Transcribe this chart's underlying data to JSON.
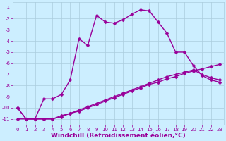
{
  "xlabel": "Windchill (Refroidissement éolien,°C)",
  "ylabel": "",
  "bg_color": "#cceeff",
  "line_color": "#990099",
  "grid_color": "#aaccdd",
  "xlim": [
    -0.5,
    23.5
  ],
  "ylim": [
    -11.5,
    -0.5
  ],
  "yticks": [
    -1,
    -2,
    -3,
    -4,
    -5,
    -6,
    -7,
    -8,
    -9,
    -10,
    -11
  ],
  "xticks": [
    0,
    1,
    2,
    3,
    4,
    5,
    6,
    7,
    8,
    9,
    10,
    11,
    12,
    13,
    14,
    15,
    16,
    17,
    18,
    19,
    20,
    21,
    22,
    23
  ],
  "line1_x": [
    0,
    1,
    2,
    3,
    4,
    5,
    6,
    7,
    8,
    9,
    10,
    11,
    12,
    13,
    14,
    15,
    16,
    17,
    18,
    19,
    20,
    21,
    22,
    23
  ],
  "line1_y": [
    -10,
    -11,
    -11,
    -9.2,
    -9.2,
    -8.8,
    -7.5,
    -3.8,
    -4.4,
    -1.7,
    -2.3,
    -2.4,
    -2.1,
    -1.6,
    -1.2,
    -1.3,
    -2.3,
    -3.3,
    -5.0,
    -5.0,
    -6.2,
    -7.1,
    -7.5,
    -7.7
  ],
  "line2_x": [
    0,
    1,
    2,
    3,
    4,
    5,
    6,
    7,
    8,
    9,
    10,
    11,
    12,
    13,
    14,
    15,
    16,
    17,
    18,
    19,
    20,
    21,
    22,
    23
  ],
  "line2_y": [
    -11,
    -11,
    -11,
    -11,
    -11,
    -10.7,
    -10.5,
    -10.2,
    -9.9,
    -9.6,
    -9.3,
    -9.0,
    -8.7,
    -8.4,
    -8.1,
    -7.8,
    -7.5,
    -7.2,
    -7.0,
    -6.8,
    -6.6,
    -7.0,
    -7.3,
    -7.5
  ],
  "line3_x": [
    0,
    1,
    2,
    3,
    4,
    5,
    6,
    7,
    8,
    9,
    10,
    11,
    12,
    13,
    14,
    15,
    16,
    17,
    18,
    19,
    20,
    21,
    22,
    23
  ],
  "line3_y": [
    -10,
    -11,
    -11,
    -11,
    -11,
    -10.8,
    -10.5,
    -10.3,
    -10.0,
    -9.7,
    -9.4,
    -9.1,
    -8.8,
    -8.5,
    -8.2,
    -7.9,
    -7.7,
    -7.4,
    -7.2,
    -6.9,
    -6.7,
    -6.5,
    -6.3,
    -6.1
  ],
  "marker": "D",
  "marker_size": 2.5,
  "line_width": 1.0,
  "tick_fontsize": 5.0,
  "xlabel_fontsize": 6.5
}
